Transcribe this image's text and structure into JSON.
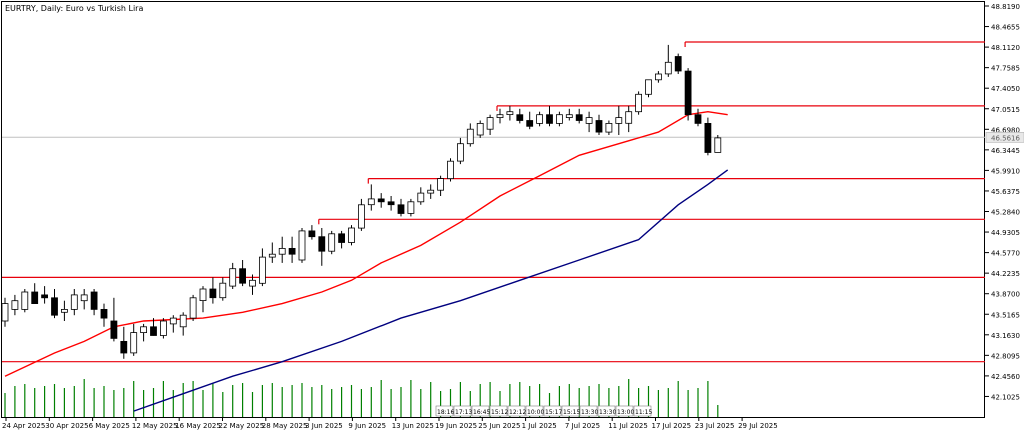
{
  "window": {
    "title": "EURTRY, Daily:  Euro vs Turkish Lira"
  },
  "colors": {
    "background": "#ffffff",
    "frame": "#000000",
    "candle": "#000000",
    "resistance": "#e8000b",
    "ma_fast": "#ff0000",
    "ma_slow": "#00007f",
    "volume": "#008000",
    "price_line": "#c0c0c0",
    "price_tag_bg": "#e8e8e8"
  },
  "chart_data": {
    "type": "candlestick",
    "title": "EURTRY, Daily:  Euro vs Turkish Lira",
    "y_ticks": [
      "48.8190",
      "48.4655",
      "48.1120",
      "47.7585",
      "47.4050",
      "47.0515",
      "46.6980",
      "46.3445",
      "45.9910",
      "45.6375",
      "45.2840",
      "44.9305",
      "44.5770",
      "44.2235",
      "43.8700",
      "43.5165",
      "43.1630",
      "42.8095",
      "42.4560",
      "42.1025"
    ],
    "x_ticks": [
      "24 Apr 2025",
      "30 Apr 2025",
      "6 May 2025",
      "12 May 2025",
      "16 May 2025",
      "22 May 2025",
      "28 May 2025",
      "3 Jun 2025",
      "9 Jun 2025",
      "13 Jun 2025",
      "19 Jun 2025",
      "25 Jun 2025",
      "1 Jul 2025",
      "7 Jul 2025",
      "11 Jul 2025",
      "17 Jul 2025",
      "23 Jul 2025",
      "29 Jul 2025"
    ],
    "current_price": 46.56,
    "price_tag_text": "46.5616",
    "candles": [
      {
        "d": "24 Apr",
        "o": 43.4,
        "h": 43.8,
        "l": 43.3,
        "c": 43.7
      },
      {
        "d": "25 Apr",
        "o": 43.6,
        "h": 43.85,
        "l": 43.5,
        "c": 43.75
      },
      {
        "d": "28 Apr",
        "o": 43.6,
        "h": 43.95,
        "l": 43.55,
        "c": 43.9
      },
      {
        "d": "29 Apr",
        "o": 43.9,
        "h": 44.05,
        "l": 43.75,
        "c": 43.7
      },
      {
        "d": "30 Apr",
        "o": 43.85,
        "h": 44.0,
        "l": 43.7,
        "c": 43.8
      },
      {
        "d": "1 May",
        "o": 43.8,
        "h": 43.95,
        "l": 43.45,
        "c": 43.5
      },
      {
        "d": "2 May",
        "o": 43.55,
        "h": 43.75,
        "l": 43.4,
        "c": 43.6
      },
      {
        "d": "5 May",
        "o": 43.6,
        "h": 43.95,
        "l": 43.5,
        "c": 43.85
      },
      {
        "d": "6 May",
        "o": 43.75,
        "h": 43.95,
        "l": 43.6,
        "c": 43.85
      },
      {
        "d": "7 May",
        "o": 43.9,
        "h": 43.95,
        "l": 43.5,
        "c": 43.6
      },
      {
        "d": "8 May",
        "o": 43.6,
        "h": 43.7,
        "l": 43.3,
        "c": 43.45
      },
      {
        "d": "9 May",
        "o": 43.4,
        "h": 43.8,
        "l": 43.05,
        "c": 43.1
      },
      {
        "d": "12 May",
        "o": 43.05,
        "h": 43.3,
        "l": 42.75,
        "c": 42.85
      },
      {
        "d": "13 May",
        "o": 42.85,
        "h": 43.35,
        "l": 42.8,
        "c": 43.2
      },
      {
        "d": "14 May",
        "o": 43.2,
        "h": 43.35,
        "l": 43.05,
        "c": 43.3
      },
      {
        "d": "15 May",
        "o": 43.3,
        "h": 43.45,
        "l": 43.15,
        "c": 43.15
      },
      {
        "d": "16 May",
        "o": 43.15,
        "h": 43.45,
        "l": 43.1,
        "c": 43.4
      },
      {
        "d": "19 May",
        "o": 43.35,
        "h": 43.5,
        "l": 43.2,
        "c": 43.45
      },
      {
        "d": "20 May",
        "o": 43.3,
        "h": 43.55,
        "l": 43.15,
        "c": 43.5
      },
      {
        "d": "21 May",
        "o": 43.45,
        "h": 43.85,
        "l": 43.4,
        "c": 43.8
      },
      {
        "d": "22 May",
        "o": 43.75,
        "h": 44.0,
        "l": 43.55,
        "c": 43.95
      },
      {
        "d": "23 May",
        "o": 43.95,
        "h": 44.15,
        "l": 43.7,
        "c": 43.8
      },
      {
        "d": "26 May",
        "o": 43.8,
        "h": 44.15,
        "l": 43.75,
        "c": 44.05
      },
      {
        "d": "27 May",
        "o": 44.0,
        "h": 44.4,
        "l": 43.95,
        "c": 44.3
      },
      {
        "d": "28 May",
        "o": 44.3,
        "h": 44.45,
        "l": 44.0,
        "c": 44.05
      },
      {
        "d": "29 May",
        "o": 44.0,
        "h": 44.2,
        "l": 43.85,
        "c": 44.1
      },
      {
        "d": "30 May",
        "o": 44.05,
        "h": 44.65,
        "l": 44.0,
        "c": 44.5
      },
      {
        "d": "2 Jun",
        "o": 44.5,
        "h": 44.75,
        "l": 44.4,
        "c": 44.55
      },
      {
        "d": "3 Jun",
        "o": 44.55,
        "h": 44.85,
        "l": 44.4,
        "c": 44.65
      },
      {
        "d": "4 Jun",
        "o": 44.65,
        "h": 44.85,
        "l": 44.4,
        "c": 44.55
      },
      {
        "d": "5 Jun",
        "o": 44.45,
        "h": 45.0,
        "l": 44.4,
        "c": 44.95
      },
      {
        "d": "6 Jun",
        "o": 44.95,
        "h": 45.05,
        "l": 44.8,
        "c": 44.85
      },
      {
        "d": "9 Jun",
        "o": 44.85,
        "h": 45.0,
        "l": 44.35,
        "c": 44.6
      },
      {
        "d": "10 Jun",
        "o": 44.6,
        "h": 44.95,
        "l": 44.55,
        "c": 44.9
      },
      {
        "d": "11 Jun",
        "o": 44.9,
        "h": 44.95,
        "l": 44.65,
        "c": 44.75
      },
      {
        "d": "12 Jun",
        "o": 44.75,
        "h": 45.05,
        "l": 44.7,
        "c": 45.0
      },
      {
        "d": "13 Jun",
        "o": 45.0,
        "h": 45.5,
        "l": 44.95,
        "c": 45.4
      },
      {
        "d": "16 Jun",
        "o": 45.4,
        "h": 45.75,
        "l": 45.3,
        "c": 45.5
      },
      {
        "d": "17 Jun",
        "o": 45.5,
        "h": 45.6,
        "l": 45.35,
        "c": 45.45
      },
      {
        "d": "18 Jun",
        "o": 45.45,
        "h": 45.55,
        "l": 45.3,
        "c": 45.4
      },
      {
        "d": "19 Jun",
        "o": 45.4,
        "h": 45.5,
        "l": 45.2,
        "c": 45.25
      },
      {
        "d": "20 Jun",
        "o": 45.25,
        "h": 45.5,
        "l": 45.2,
        "c": 45.45
      },
      {
        "d": "23 Jun",
        "o": 45.45,
        "h": 45.7,
        "l": 45.4,
        "c": 45.6
      },
      {
        "d": "24 Jun",
        "o": 45.6,
        "h": 45.75,
        "l": 45.5,
        "c": 45.65
      },
      {
        "d": "25 Jun",
        "o": 45.65,
        "h": 45.9,
        "l": 45.55,
        "c": 45.85
      },
      {
        "d": "26 Jun",
        "o": 45.85,
        "h": 46.2,
        "l": 45.8,
        "c": 46.15
      },
      {
        "d": "27 Jun",
        "o": 46.15,
        "h": 46.55,
        "l": 46.1,
        "c": 46.45
      },
      {
        "d": "30 Jun",
        "o": 46.45,
        "h": 46.8,
        "l": 46.4,
        "c": 46.7
      },
      {
        "d": "1 Jul",
        "o": 46.6,
        "h": 46.85,
        "l": 46.55,
        "c": 46.8
      },
      {
        "d": "2 Jul",
        "o": 46.7,
        "h": 46.95,
        "l": 46.6,
        "c": 46.9
      },
      {
        "d": "3 Jul",
        "o": 46.9,
        "h": 47.05,
        "l": 46.8,
        "c": 46.95
      },
      {
        "d": "4 Jul",
        "o": 46.95,
        "h": 47.1,
        "l": 46.85,
        "c": 47.0
      },
      {
        "d": "7 Jul",
        "o": 46.95,
        "h": 47.05,
        "l": 46.8,
        "c": 46.85
      },
      {
        "d": "8 Jul",
        "o": 46.85,
        "h": 47.0,
        "l": 46.7,
        "c": 46.75
      },
      {
        "d": "9 Jul",
        "o": 46.8,
        "h": 47.0,
        "l": 46.75,
        "c": 46.95
      },
      {
        "d": "10 Jul",
        "o": 46.95,
        "h": 47.1,
        "l": 46.75,
        "c": 46.8
      },
      {
        "d": "11 Jul",
        "o": 46.8,
        "h": 47.0,
        "l": 46.75,
        "c": 46.95
      },
      {
        "d": "14 Jul",
        "o": 46.9,
        "h": 47.05,
        "l": 46.85,
        "c": 46.95
      },
      {
        "d": "15 Jul",
        "o": 46.95,
        "h": 47.05,
        "l": 46.8,
        "c": 46.85
      },
      {
        "d": "16 Jul",
        "o": 46.8,
        "h": 47.0,
        "l": 46.65,
        "c": 46.9
      },
      {
        "d": "17 Jul",
        "o": 46.85,
        "h": 46.95,
        "l": 46.6,
        "c": 46.65
      },
      {
        "d": "18 Jul",
        "o": 46.65,
        "h": 46.85,
        "l": 46.6,
        "c": 46.8
      },
      {
        "d": "21 Jul",
        "o": 46.8,
        "h": 47.1,
        "l": 46.6,
        "c": 46.9
      },
      {
        "d": "22 Jul",
        "o": 46.8,
        "h": 47.1,
        "l": 46.65,
        "c": 47.0
      },
      {
        "d": "23 Jul",
        "o": 47.0,
        "h": 47.35,
        "l": 46.95,
        "c": 47.3
      },
      {
        "d": "24 Jul",
        "o": 47.3,
        "h": 47.55,
        "l": 47.25,
        "c": 47.55
      },
      {
        "d": "25 Jul",
        "o": 47.55,
        "h": 47.7,
        "l": 47.5,
        "c": 47.65
      },
      {
        "d": "28 Jul",
        "o": 47.65,
        "h": 48.15,
        "l": 47.6,
        "c": 47.85
      },
      {
        "d": "29 Jul",
        "o": 47.95,
        "h": 48.0,
        "l": 47.65,
        "c": 47.7
      },
      {
        "d": "30 Jul",
        "o": 47.7,
        "h": 47.75,
        "l": 46.85,
        "c": 46.95
      },
      {
        "d": "31 Jul",
        "o": 46.95,
        "h": 47.05,
        "l": 46.75,
        "c": 46.8
      },
      {
        "d": "1 Aug",
        "o": 46.8,
        "h": 46.9,
        "l": 46.25,
        "c": 46.3
      },
      {
        "d": "4 Aug",
        "o": 46.3,
        "h": 46.6,
        "l": 46.3,
        "c": 46.55
      }
    ],
    "ma_fast": [
      {
        "i": 0,
        "v": 42.45
      },
      {
        "i": 5,
        "v": 42.85
      },
      {
        "i": 8,
        "v": 43.05
      },
      {
        "i": 11,
        "v": 43.3
      },
      {
        "i": 14,
        "v": 43.4
      },
      {
        "i": 20,
        "v": 43.45
      },
      {
        "i": 24,
        "v": 43.55
      },
      {
        "i": 28,
        "v": 43.7
      },
      {
        "i": 32,
        "v": 43.9
      },
      {
        "i": 35,
        "v": 44.1
      },
      {
        "i": 38,
        "v": 44.4
      },
      {
        "i": 42,
        "v": 44.7
      },
      {
        "i": 46,
        "v": 45.1
      },
      {
        "i": 50,
        "v": 45.55
      },
      {
        "i": 54,
        "v": 45.9
      },
      {
        "i": 58,
        "v": 46.25
      },
      {
        "i": 62,
        "v": 46.45
      },
      {
        "i": 66,
        "v": 46.65
      },
      {
        "i": 69,
        "v": 46.95
      },
      {
        "i": 71,
        "v": 47.0
      },
      {
        "i": 73,
        "v": 46.95
      }
    ],
    "ma_slow": [
      {
        "i": 13,
        "v": 41.85
      },
      {
        "i": 18,
        "v": 42.15
      },
      {
        "i": 23,
        "v": 42.45
      },
      {
        "i": 28,
        "v": 42.7
      },
      {
        "i": 34,
        "v": 43.05
      },
      {
        "i": 40,
        "v": 43.45
      },
      {
        "i": 46,
        "v": 43.75
      },
      {
        "i": 52,
        "v": 44.1
      },
      {
        "i": 58,
        "v": 44.45
      },
      {
        "i": 64,
        "v": 44.8
      },
      {
        "i": 68,
        "v": 45.4
      },
      {
        "i": 71,
        "v": 45.75
      },
      {
        "i": 73,
        "v": 46.0
      }
    ],
    "levels": [
      {
        "v": 48.2,
        "from": 69
      },
      {
        "v": 47.1,
        "from": 50
      },
      {
        "v": 45.85,
        "from": 37
      },
      {
        "v": 45.15,
        "from": 32
      },
      {
        "v": 44.15,
        "from": 0
      },
      {
        "v": 42.7,
        "from": 0
      }
    ],
    "volume_labels": [
      "18:16",
      "17:13",
      "16:45",
      "15:12",
      "12:12",
      "10:00",
      "15:17",
      "15:15",
      "13:30",
      "13:30",
      "13:00",
      "11:15"
    ]
  }
}
